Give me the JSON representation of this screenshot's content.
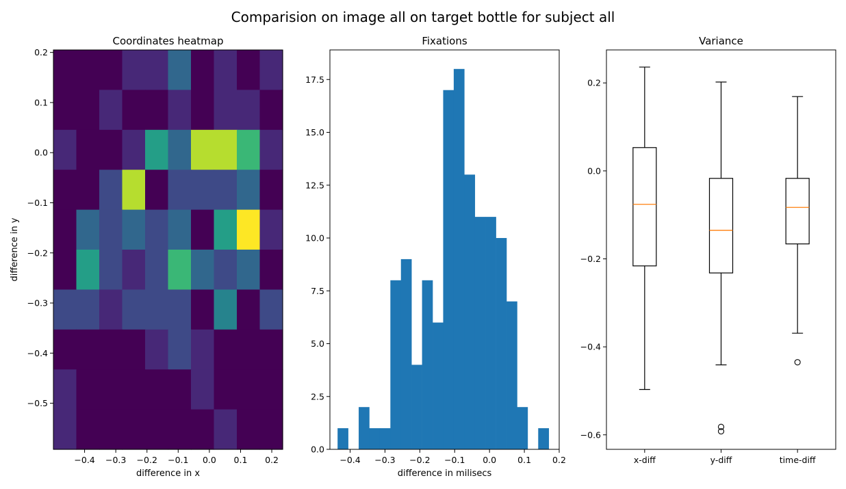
{
  "suptitle": "Comparision on image all on target bottle for subject all",
  "chart_data": [
    {
      "type": "heatmap",
      "title": "Coordinates heatmap",
      "xlabel": "difference in x",
      "ylabel": "difference in y",
      "colormap": "viridis",
      "x_range": [
        -0.5,
        0.235
      ],
      "y_range": [
        -0.592,
        0.205
      ],
      "x_ticks": [
        -0.4,
        -0.3,
        -0.2,
        -0.1,
        0.0,
        0.1,
        0.2
      ],
      "x_tick_labels": [
        "−0.4",
        "−0.3",
        "−0.2",
        "−0.1",
        "0.0",
        "0.1",
        "0.2"
      ],
      "y_ticks": [
        0.2,
        0.1,
        0.0,
        -0.1,
        -0.2,
        -0.3,
        -0.4,
        -0.5
      ],
      "y_tick_labels": [
        "0.2",
        "0.1",
        "0.0",
        "−0.1",
        "−0.2",
        "−0.3",
        "−0.4",
        "−0.5"
      ],
      "grid": false,
      "bins": [
        10,
        10
      ],
      "values": [
        [
          0,
          0,
          0,
          1,
          1,
          3,
          0,
          1,
          0,
          1
        ],
        [
          0,
          0,
          1,
          0,
          0,
          1,
          0,
          1,
          1,
          0
        ],
        [
          1,
          0,
          0,
          1,
          5,
          3,
          8,
          8,
          6,
          1
        ],
        [
          0,
          0,
          2,
          8,
          0,
          2,
          2,
          2,
          3,
          0
        ],
        [
          0,
          3,
          2,
          3,
          2,
          3,
          0,
          5,
          9,
          1
        ],
        [
          0,
          5,
          2,
          1,
          2,
          6,
          3,
          2,
          3,
          0
        ],
        [
          2,
          2,
          1,
          2,
          2,
          2,
          0,
          4,
          0,
          2
        ],
        [
          0,
          0,
          0,
          0,
          1,
          2,
          1,
          0,
          0,
          0
        ],
        [
          1,
          0,
          0,
          0,
          0,
          0,
          1,
          0,
          0,
          0
        ],
        [
          1,
          0,
          0,
          0,
          0,
          0,
          0,
          1,
          0,
          0
        ]
      ],
      "vmax": 9
    },
    {
      "type": "bar",
      "title": "Fixations",
      "xlabel": "difference in milisecs",
      "ylabel": "",
      "color": "#1f77b4",
      "x_range": [
        -0.458,
        0.2
      ],
      "ylim": [
        0,
        18.9
      ],
      "x_ticks": [
        -0.4,
        -0.3,
        -0.2,
        -0.1,
        0.0,
        0.1,
        0.2
      ],
      "x_tick_labels": [
        "−0.4",
        "−0.3",
        "−0.2",
        "−0.1",
        "0.0",
        "0.1",
        "0.2"
      ],
      "y_ticks": [
        0.0,
        2.5,
        5.0,
        7.5,
        10.0,
        12.5,
        15.0,
        17.5
      ],
      "y_tick_labels": [
        "0.0",
        "2.5",
        "5.0",
        "7.5",
        "10.0",
        "12.5",
        "15.0",
        "17.5"
      ],
      "grid": false,
      "bin_start": -0.436,
      "bin_width": 0.0303,
      "values": [
        1,
        0,
        2,
        1,
        1,
        8,
        9,
        4,
        8,
        6,
        17,
        18,
        13,
        11,
        11,
        10,
        7,
        2,
        0,
        1
      ]
    },
    {
      "type": "box",
      "title": "Variance",
      "xlabel": "",
      "ylabel": "",
      "ylim": [
        -0.633,
        0.275
      ],
      "y_ticks": [
        0.2,
        0.0,
        -0.2,
        -0.4,
        -0.6
      ],
      "y_tick_labels": [
        "0.2",
        "0.0",
        "−0.2",
        "−0.4",
        "−0.6"
      ],
      "grid": false,
      "median_color": "#ff7f0e",
      "categories": [
        "x-diff",
        "y-diff",
        "time-diff"
      ],
      "boxes": [
        {
          "label": "x-diff",
          "whisker_low": -0.497,
          "q1": -0.216,
          "median": -0.076,
          "q3": 0.053,
          "whisker_high": 0.236,
          "outliers": []
        },
        {
          "label": "y-diff",
          "whisker_low": -0.441,
          "q1": -0.232,
          "median": -0.135,
          "q3": -0.017,
          "whisker_high": 0.202,
          "outliers": [
            -0.582,
            -0.592
          ]
        },
        {
          "label": "time-diff",
          "whisker_low": -0.369,
          "q1": -0.166,
          "median": -0.083,
          "q3": -0.017,
          "whisker_high": 0.169,
          "outliers": [
            -0.435
          ]
        }
      ]
    }
  ]
}
